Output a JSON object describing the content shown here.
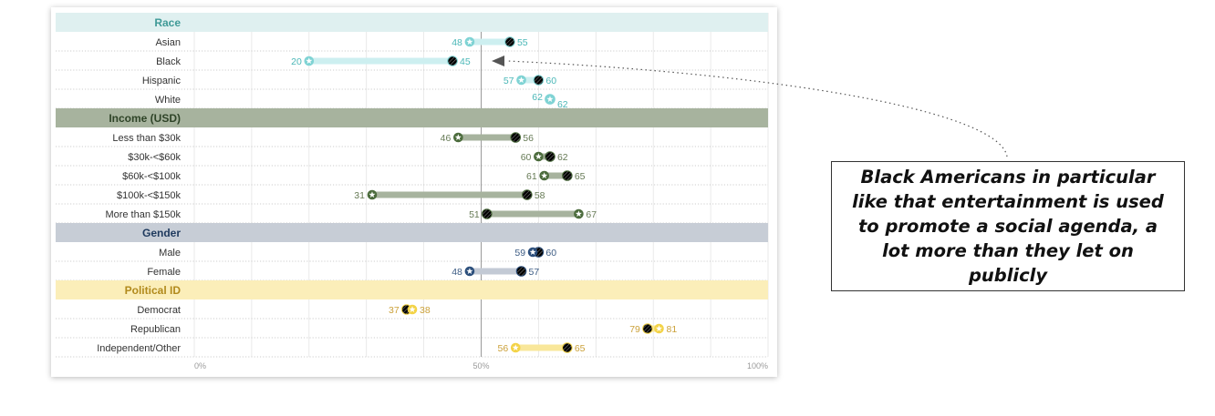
{
  "chart_data": {
    "type": "dumbbell",
    "x_axis": {
      "ticks": [
        "0%",
        "50%",
        "100%"
      ],
      "range": [
        0,
        100
      ]
    },
    "grid": true,
    "groups": [
      {
        "name": "Race",
        "header_bg": "#dff0f0",
        "header_text_color": "#3f9a97",
        "dot_color": "#7fd3d4",
        "bar_color": "#cdeff0",
        "value_color": "#4ab7b7",
        "rows": [
          {
            "label": "Asian",
            "star": 48,
            "hatched": 55
          },
          {
            "label": "Black",
            "star": 20,
            "hatched": 45
          },
          {
            "label": "Hispanic",
            "star": 57,
            "hatched": 60
          },
          {
            "label": "White",
            "star": 62,
            "hatched": 62
          }
        ]
      },
      {
        "name": "Income (USD)",
        "header_bg": "#a7b39e",
        "header_text_color": "#2f4428",
        "dot_color": "#4b6b3c",
        "bar_color": "#a7b39e",
        "value_color": "#667a55",
        "rows": [
          {
            "label": "Less than $30k",
            "star": 46,
            "hatched": 56
          },
          {
            "label": "$30k-<$60k",
            "star": 60,
            "hatched": 62
          },
          {
            "label": "$60k-<$100k",
            "star": 61,
            "hatched": 65
          },
          {
            "label": "$100k-<$150k",
            "star": 31,
            "hatched": 58
          },
          {
            "label": "More than $150k",
            "star": 67,
            "hatched": 51
          }
        ]
      },
      {
        "name": "Gender",
        "header_bg": "#c7cdd6",
        "header_text_color": "#1f3a5e",
        "dot_color": "#2c4f7c",
        "bar_color": "#c3cad5",
        "value_color": "#3d5c84",
        "rows": [
          {
            "label": "Male",
            "star": 59,
            "hatched": 60
          },
          {
            "label": "Female",
            "star": 48,
            "hatched": 57
          }
        ]
      },
      {
        "name": "Political ID",
        "header_bg": "#fbeeb9",
        "header_text_color": "#b18a1c",
        "dot_color": "#f3d347",
        "bar_color": "#f9e79a",
        "value_color": "#cba13a",
        "rows": [
          {
            "label": "Democrat",
            "star": 38,
            "hatched": 37
          },
          {
            "label": "Republican",
            "star": 81,
            "hatched": 79
          },
          {
            "label": "Independent/Other",
            "star": 56,
            "hatched": 65
          }
        ]
      }
    ]
  },
  "callout": {
    "text": "Black Americans in particular like that entertainment is used to promote a social agenda, a lot more than they let on publicly"
  }
}
